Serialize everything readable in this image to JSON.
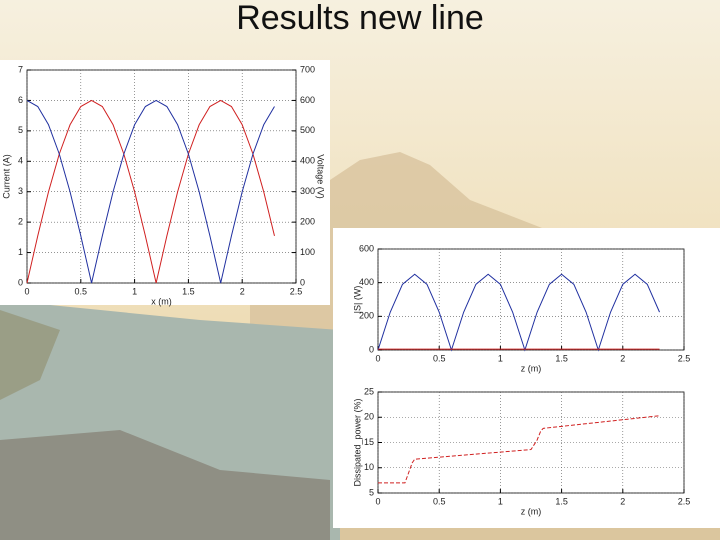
{
  "slide": {
    "title": "Results new line"
  },
  "chart_data": [
    {
      "type": "line",
      "x_label": "x (m)",
      "y_label": "Current (A)",
      "y2_label": "Voltage (V)",
      "xlim": [
        0,
        2.5
      ],
      "xticks": [
        0,
        0.5,
        1,
        1.5,
        2,
        2.5
      ],
      "ylim": [
        0,
        7
      ],
      "yticks": [
        0,
        1,
        2,
        3,
        4,
        5,
        6,
        7
      ],
      "y2lim": [
        0,
        700
      ],
      "y2ticks": [
        0,
        100,
        200,
        300,
        400,
        500,
        600,
        700
      ],
      "grid": true,
      "x": [
        0,
        0.1,
        0.2,
        0.3,
        0.4,
        0.5,
        0.6,
        0.7,
        0.8,
        0.9,
        1,
        1.1,
        1.2,
        1.3,
        1.4,
        1.5,
        1.6,
        1.7,
        1.8,
        1.9,
        2,
        2.1,
        2.2,
        2.3
      ],
      "series": [
        {
          "color": "#d02020",
          "values": [
            0,
            1.55,
            3,
            4.24,
            5.2,
            5.8,
            6,
            5.8,
            5.2,
            4.24,
            3,
            1.55,
            0,
            1.55,
            3,
            4.24,
            5.2,
            5.8,
            6,
            5.8,
            5.2,
            4.24,
            3,
            1.55
          ]
        },
        {
          "color": "#2030a0",
          "axis": "y2",
          "values": [
            600,
            580,
            520,
            424,
            300,
            155,
            0,
            155,
            300,
            424,
            520,
            580,
            600,
            580,
            520,
            424,
            300,
            155,
            0,
            155,
            300,
            424,
            520,
            580
          ]
        }
      ]
    },
    {
      "type": "line",
      "x_label": "z (m)",
      "y_label": "|S| (W)",
      "xlim": [
        0,
        2.5
      ],
      "xticks": [
        0,
        0.5,
        1,
        1.5,
        2,
        2.5
      ],
      "ylim": [
        0,
        600
      ],
      "yticks": [
        0,
        200,
        400,
        600
      ],
      "grid": true,
      "x": [
        0,
        0.1,
        0.2,
        0.3,
        0.4,
        0.5,
        0.6,
        0.7,
        0.8,
        0.9,
        1,
        1.1,
        1.2,
        1.3,
        1.4,
        1.5,
        1.6,
        1.7,
        1.8,
        1.9,
        2,
        2.1,
        2.2,
        2.3
      ],
      "series": [
        {
          "color": "#2030a0",
          "values": [
            0,
            225,
            390,
            450,
            390,
            225,
            0,
            225,
            390,
            450,
            390,
            225,
            0,
            225,
            390,
            450,
            390,
            225,
            0,
            225,
            390,
            450,
            390,
            225
          ]
        },
        {
          "color": "#d02020",
          "x": [
            0,
            2.3
          ],
          "values": [
            5,
            5
          ]
        }
      ]
    },
    {
      "type": "line",
      "x_label": "z (m)",
      "y_label": "Dissipated_power (%)",
      "xlim": [
        0,
        2.5
      ],
      "xticks": [
        0,
        0.5,
        1,
        1.5,
        2,
        2.5
      ],
      "ylim": [
        5,
        25
      ],
      "yticks": [
        5,
        10,
        15,
        20,
        25
      ],
      "grid": true,
      "x": [
        0,
        0.22,
        0.28,
        0.3,
        1.25,
        1.3,
        1.33,
        1.35,
        2.3
      ],
      "series": [
        {
          "color": "#d02020",
          "dashed": true,
          "values": [
            7,
            7,
            11,
            11.7,
            13.6,
            15.5,
            17.3,
            17.8,
            20.3
          ]
        }
      ]
    }
  ]
}
